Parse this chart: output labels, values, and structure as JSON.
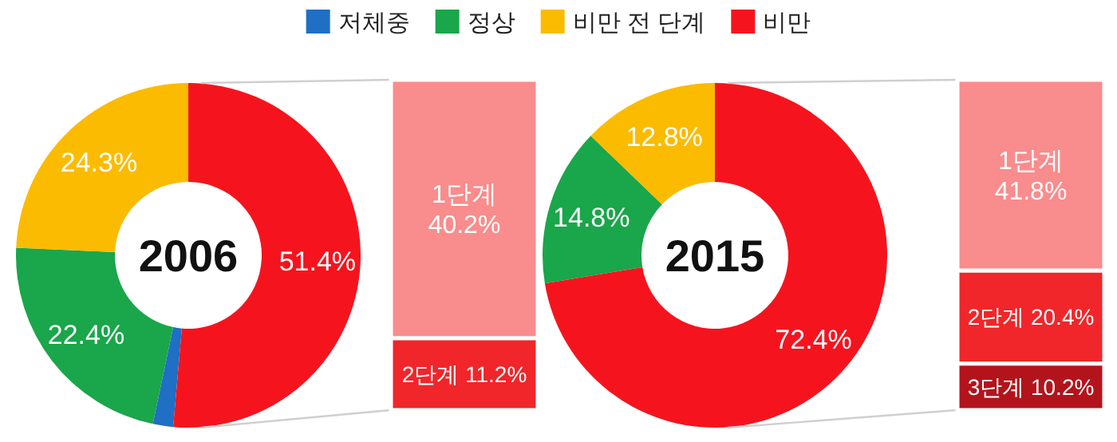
{
  "chart_data": [
    {
      "type": "donut",
      "title": "2006",
      "categories": [
        "저체중",
        "정상",
        "비만 전 단계",
        "비만"
      ],
      "values": [
        1.9,
        22.4,
        24.3,
        51.4
      ],
      "value_labels": [
        null,
        "22.4%",
        "24.3%",
        "51.4%"
      ],
      "colors": [
        "#1f6fc5",
        "#1aa64a",
        "#fbbb00",
        "#f5141e"
      ],
      "legend": "top"
    },
    {
      "type": "bar",
      "stacked": true,
      "categories": [
        null
      ],
      "series": [
        {
          "name": "2단계",
          "color": "#f0262a",
          "values": [
            11.2
          ],
          "value_labels": [
            "11.2%"
          ]
        },
        {
          "name": "1단계",
          "color": "#f98c8c",
          "values": [
            40.2
          ],
          "value_labels": [
            "40.2%"
          ]
        }
      ]
    },
    {
      "type": "donut",
      "title": "2015",
      "categories": [
        null,
        null,
        null
      ],
      "values": [
        14.8,
        12.8,
        72.4
      ],
      "value_labels": [
        "14.8%",
        "12.8%",
        "72.4%"
      ],
      "colors": [
        "#1aa64a",
        "#fbbb00",
        "#f5141e"
      ]
    },
    {
      "type": "bar",
      "stacked": true,
      "categories": [
        null
      ],
      "series": [
        {
          "name": "3단계",
          "color": "#b3141b",
          "values": [
            10.2
          ],
          "value_labels": [
            "10.2%"
          ]
        },
        {
          "name": "2단계",
          "color": "#f0262a",
          "values": [
            20.4
          ],
          "value_labels": [
            "20.4%"
          ]
        },
        {
          "name": "1단계",
          "color": "#f98c8c",
          "values": [
            41.8
          ],
          "value_labels": [
            "41.8%"
          ]
        }
      ]
    }
  ]
}
